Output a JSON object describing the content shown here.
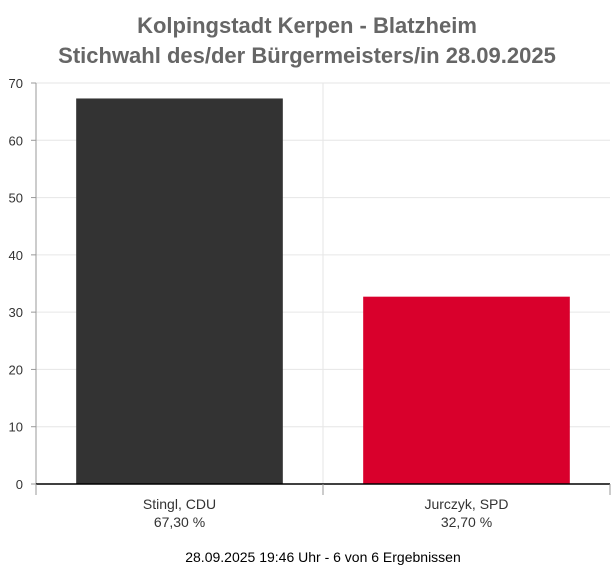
{
  "chart_data": {
    "type": "bar",
    "title": "Kolpingstadt Kerpen - Blatzheim",
    "subtitle": "Stichwahl des/der Bürgermeisters/in 28.09.2025",
    "categories": [
      "Stingl, CDU",
      "Jurczyk, SPD"
    ],
    "value_labels": [
      "67,30 %",
      "32,70 %"
    ],
    "values": [
      67.3,
      32.7
    ],
    "colors": [
      "#333333",
      "#d9002c"
    ],
    "ylim": [
      0,
      70
    ],
    "yticks": [
      0,
      10,
      20,
      30,
      40,
      50,
      60,
      70
    ],
    "grid": true,
    "xlabel": "",
    "ylabel": ""
  },
  "footer": "28.09.2025 19:46 Uhr - 6 von 6 Ergebnissen"
}
